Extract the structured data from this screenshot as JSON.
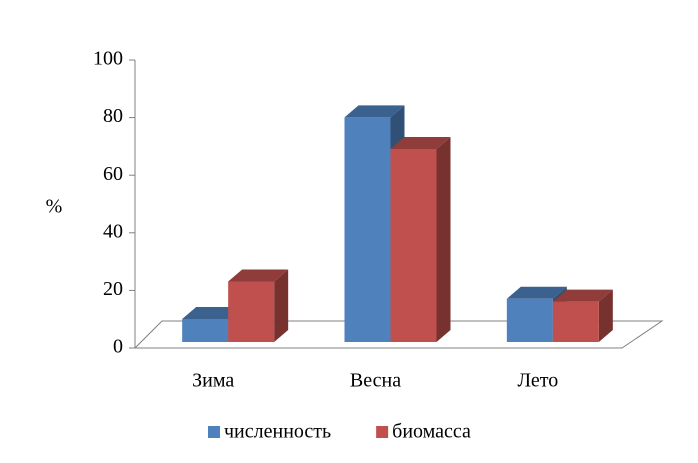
{
  "chart_data": {
    "type": "bar3d",
    "ylabel": "%",
    "categories": [
      "Зима",
      "Весна",
      "Лето"
    ],
    "series": [
      {
        "name": "численность",
        "color": "#4f81bd",
        "values": [
          8,
          78,
          15
        ]
      },
      {
        "name": "биомасса",
        "color": "#c0504d",
        "values": [
          21,
          67,
          14
        ]
      }
    ],
    "ylim": [
      0,
      100
    ],
    "yticks": [
      0,
      20,
      40,
      60,
      80,
      100
    ],
    "legend": "bottom"
  }
}
